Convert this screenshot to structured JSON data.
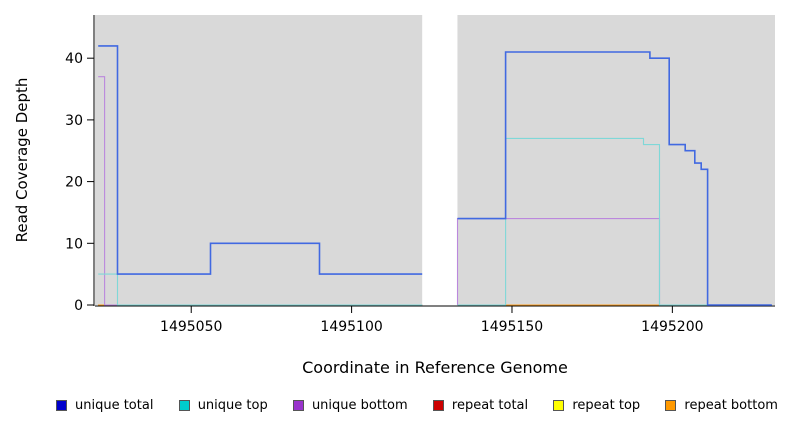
{
  "chart_data": {
    "type": "line",
    "title": "",
    "xlabel": "Coordinate in Reference Genome",
    "ylabel": "Read Coverage Depth",
    "xlim": [
      1495020,
      1495232
    ],
    "ylim": [
      0,
      47
    ],
    "x_ticks": [
      1495050,
      1495100,
      1495150,
      1495200
    ],
    "y_ticks": [
      0,
      10,
      20,
      30,
      40
    ],
    "background": "#d9d9d9",
    "grid": "off",
    "legend_position": "bottom",
    "gap_region": [
      1495122,
      1495133
    ],
    "series": [
      {
        "name": "repeat top",
        "color": "#F2F200",
        "width": 1.1,
        "segments": [
          [
            [
              1495021,
              0
            ],
            [
              1495122,
              0
            ]
          ],
          [
            [
              1495133,
              0
            ],
            [
              1495231,
              0
            ]
          ]
        ]
      },
      {
        "name": "repeat total",
        "color": "#CC4444",
        "width": 1.1,
        "segments": [
          [
            [
              1495021,
              0
            ],
            [
              1495122,
              0
            ]
          ],
          [
            [
              1495133,
              0
            ],
            [
              1495231,
              0
            ]
          ]
        ]
      },
      {
        "name": "repeat bottom",
        "color": "#FFA020",
        "width": 1.1,
        "segments": [
          [
            [
              1495021,
              0
            ],
            [
              1495026,
              0
            ]
          ],
          [
            [
              1495133,
              0
            ],
            [
              1495196,
              0
            ]
          ]
        ]
      },
      {
        "name": "unique bottom",
        "color": "#BB88DD",
        "width": 1.1,
        "segments": [
          [
            [
              1495021,
              37
            ],
            [
              1495023,
              37
            ],
            [
              1495023,
              0
            ],
            [
              1495122,
              0
            ]
          ],
          [
            [
              1495133,
              0
            ],
            [
              1495133,
              14
            ],
            [
              1495196,
              14
            ],
            [
              1495196,
              0
            ],
            [
              1495231,
              0
            ]
          ]
        ]
      },
      {
        "name": "unique top",
        "color": "#7FD8D8",
        "width": 1.1,
        "segments": [
          [
            [
              1495021,
              5
            ],
            [
              1495027,
              5
            ],
            [
              1495027,
              0
            ],
            [
              1495122,
              0
            ]
          ],
          [
            [
              1495133,
              0
            ],
            [
              1495148,
              0
            ],
            [
              1495148,
              27
            ],
            [
              1495191,
              27
            ],
            [
              1495191,
              26
            ],
            [
              1495196,
              26
            ],
            [
              1495196,
              0
            ],
            [
              1495231,
              0
            ]
          ]
        ]
      },
      {
        "name": "unique total",
        "color": "#4169E1",
        "width": 1.6,
        "segments": [
          [
            [
              1495021,
              42
            ],
            [
              1495027,
              42
            ],
            [
              1495027,
              5
            ],
            [
              1495056,
              5
            ],
            [
              1495056,
              10
            ],
            [
              1495090,
              10
            ],
            [
              1495090,
              5
            ],
            [
              1495122,
              5
            ]
          ],
          [
            [
              1495133,
              14
            ],
            [
              1495148,
              14
            ],
            [
              1495148,
              41
            ],
            [
              1495193,
              41
            ],
            [
              1495193,
              40
            ],
            [
              1495199,
              40
            ],
            [
              1495199,
              26
            ],
            [
              1495204,
              26
            ],
            [
              1495204,
              25
            ],
            [
              1495207,
              25
            ],
            [
              1495207,
              23
            ],
            [
              1495209,
              23
            ],
            [
              1495209,
              22
            ],
            [
              1495211,
              22
            ],
            [
              1495211,
              0
            ],
            [
              1495231,
              0
            ]
          ]
        ]
      }
    ],
    "legend": [
      {
        "label": "unique total",
        "color": "#0000CC"
      },
      {
        "label": "unique top",
        "color": "#00CCCC"
      },
      {
        "label": "unique bottom",
        "color": "#9933CC"
      },
      {
        "label": "repeat total",
        "color": "#CC0000"
      },
      {
        "label": "repeat top",
        "color": "#FFFF00"
      },
      {
        "label": "repeat bottom",
        "color": "#FF9900"
      }
    ]
  }
}
